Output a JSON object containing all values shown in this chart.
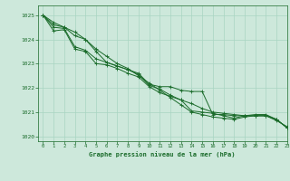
{
  "title": "Graphe pression niveau de la mer (hPa)",
  "background_color": "#cde8db",
  "grid_color": "#a8d5c2",
  "line_color": "#1a6b2a",
  "marker_color": "#1a6b2a",
  "xlim": [
    -0.5,
    23
  ],
  "ylim": [
    1019.8,
    1025.4
  ],
  "yticks": [
    1020,
    1021,
    1022,
    1023,
    1024,
    1025
  ],
  "xticks": [
    0,
    1,
    2,
    3,
    4,
    5,
    6,
    7,
    8,
    9,
    10,
    11,
    12,
    13,
    14,
    15,
    16,
    17,
    18,
    19,
    20,
    21,
    22,
    23
  ],
  "series": [
    [
      1025.0,
      1024.7,
      1024.5,
      1024.3,
      1024.0,
      1023.6,
      1023.3,
      1023.0,
      1022.8,
      1022.5,
      1022.2,
      1021.9,
      1021.6,
      1021.3,
      1021.0,
      1020.9,
      1020.8,
      1020.75,
      1020.7,
      1020.8,
      1020.85,
      1020.85,
      1020.65,
      1020.4
    ],
    [
      1025.0,
      1024.6,
      1024.5,
      1024.15,
      1024.0,
      1023.5,
      1023.05,
      1022.9,
      1022.75,
      1022.55,
      1022.1,
      1021.95,
      1021.7,
      1021.5,
      1021.05,
      1021.0,
      1020.95,
      1020.85,
      1020.75,
      1020.85,
      1020.9,
      1020.9,
      1020.7,
      1020.35
    ],
    [
      1025.0,
      1024.5,
      1024.45,
      1023.7,
      1023.55,
      1023.2,
      1023.05,
      1022.9,
      1022.75,
      1022.6,
      1022.15,
      1022.05,
      1022.05,
      1021.9,
      1021.85,
      1021.85,
      1020.9,
      1020.9,
      1020.85,
      1020.85,
      1020.85,
      1020.85,
      1020.7,
      1020.35
    ],
    [
      1025.0,
      1024.35,
      1024.4,
      1023.6,
      1023.5,
      1023.0,
      1022.95,
      1022.8,
      1022.6,
      1022.45,
      1022.05,
      1021.8,
      1021.65,
      1021.5,
      1021.35,
      1021.15,
      1021.0,
      1020.95,
      1020.9,
      1020.85,
      1020.85,
      1020.85,
      1020.7,
      1020.35
    ]
  ]
}
